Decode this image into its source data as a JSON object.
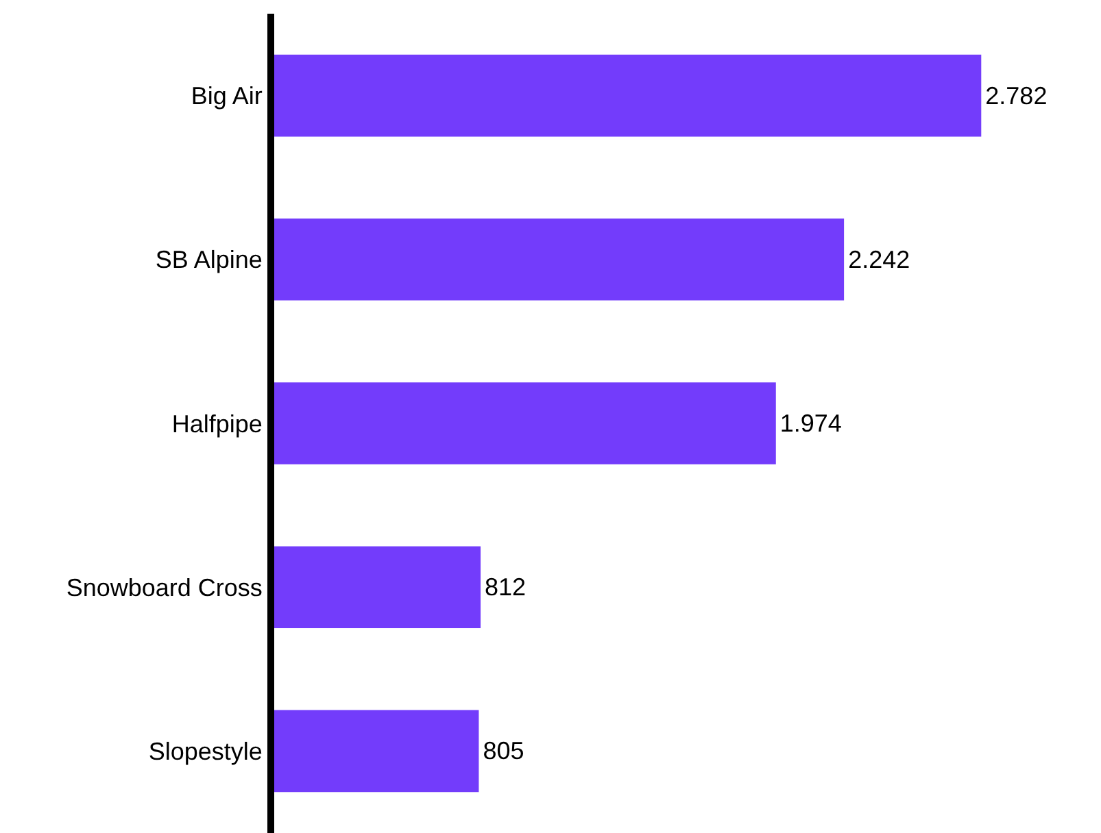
{
  "chart_data": {
    "type": "bar",
    "orientation": "horizontal",
    "categories": [
      "Big Air",
      "SB Alpine",
      "Halfpipe",
      "Snowboard Cross",
      "Slopestyle"
    ],
    "values": [
      2782,
      2242,
      1974,
      812,
      805
    ],
    "value_labels": [
      "2.782",
      "2.242",
      "1.974",
      "812",
      "805"
    ],
    "color": "#733cfb",
    "legend": false
  }
}
